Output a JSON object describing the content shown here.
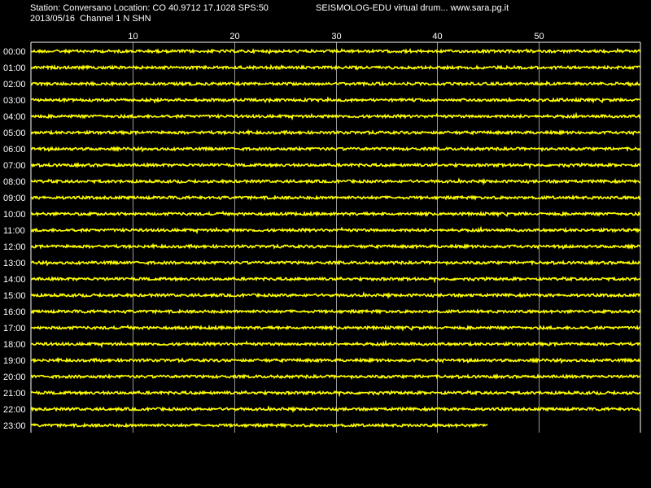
{
  "header": {
    "station_line": "Station: Conversano Location: CO 40.9712 17.1028 SPS:50",
    "title_line": "SEISMOLOG-EDU virtual drum... www.sara.pg.it",
    "date_line": "2013/05/16  Channel 1 N SHN"
  },
  "colors": {
    "background": "#000000",
    "trace": "#ffff00",
    "grid": "#ffffff",
    "text": "#ffffff"
  },
  "chart_data": {
    "type": "line",
    "x_range_minutes": [
      0,
      60
    ],
    "x_ticks": [
      10,
      20,
      30,
      40,
      50
    ],
    "grid": true,
    "rows": [
      {
        "label": "00:00",
        "end_minute": 60
      },
      {
        "label": "01:00",
        "end_minute": 60
      },
      {
        "label": "02:00",
        "end_minute": 60
      },
      {
        "label": "03:00",
        "end_minute": 60
      },
      {
        "label": "04:00",
        "end_minute": 60
      },
      {
        "label": "05:00",
        "end_minute": 60
      },
      {
        "label": "06:00",
        "end_minute": 60
      },
      {
        "label": "07:00",
        "end_minute": 60
      },
      {
        "label": "08:00",
        "end_minute": 60
      },
      {
        "label": "09:00",
        "end_minute": 60
      },
      {
        "label": "10:00",
        "end_minute": 60
      },
      {
        "label": "11:00",
        "end_minute": 60
      },
      {
        "label": "12:00",
        "end_minute": 60
      },
      {
        "label": "13:00",
        "end_minute": 60
      },
      {
        "label": "14:00",
        "end_minute": 60
      },
      {
        "label": "15:00",
        "end_minute": 60
      },
      {
        "label": "16:00",
        "end_minute": 60
      },
      {
        "label": "17:00",
        "end_minute": 60
      },
      {
        "label": "18:00",
        "end_minute": 60
      },
      {
        "label": "19:00",
        "end_minute": 60
      },
      {
        "label": "20:00",
        "end_minute": 60
      },
      {
        "label": "21:00",
        "end_minute": 60
      },
      {
        "label": "22:00",
        "end_minute": 60
      },
      {
        "label": "23:00",
        "end_minute": 45
      }
    ]
  }
}
